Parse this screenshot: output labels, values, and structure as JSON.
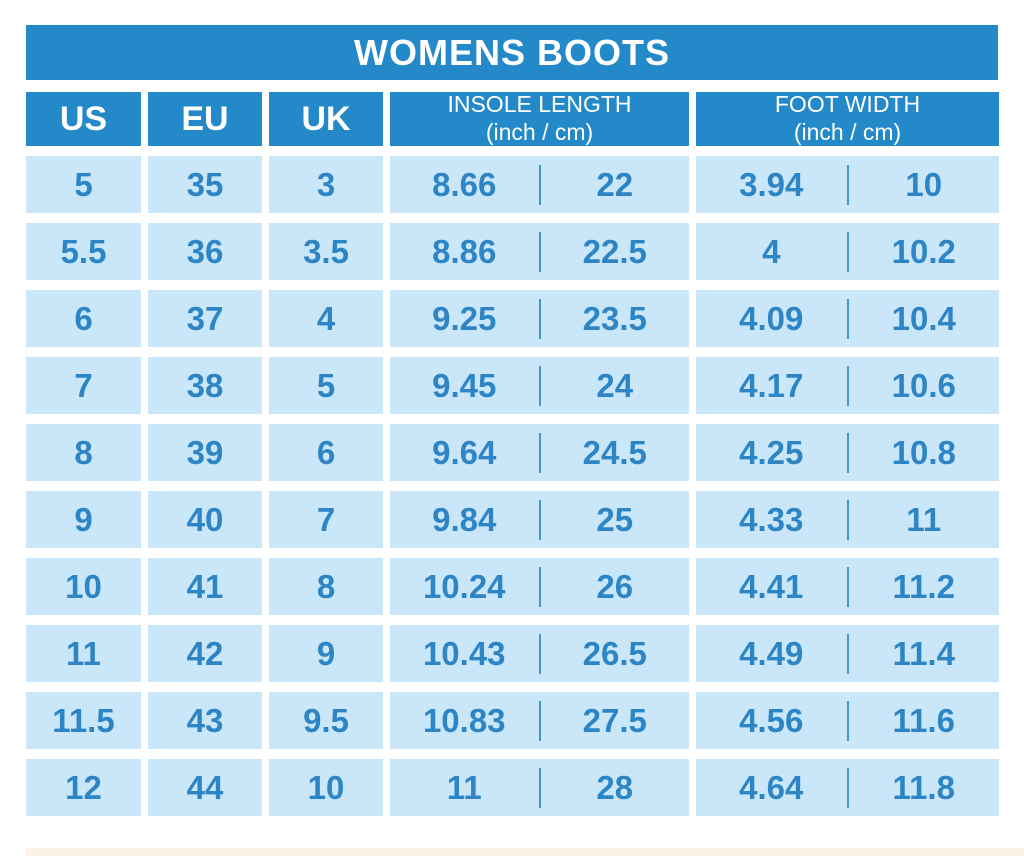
{
  "title": "WOMENS BOOTS",
  "header": {
    "us": "US",
    "eu": "EU",
    "uk": "UK",
    "insole_title": "INSOLE LENGTH",
    "insole_sub": "(inch / cm)",
    "foot_title": "FOOT WIDTH",
    "foot_sub": "(inch / cm)"
  },
  "rows": [
    {
      "us": "5",
      "eu": "35",
      "uk": "3",
      "insole_inch": "8.66",
      "insole_cm": "22",
      "foot_inch": "3.94",
      "foot_cm": "10"
    },
    {
      "us": "5.5",
      "eu": "36",
      "uk": "3.5",
      "insole_inch": "8.86",
      "insole_cm": "22.5",
      "foot_inch": "4",
      "foot_cm": "10.2"
    },
    {
      "us": "6",
      "eu": "37",
      "uk": "4",
      "insole_inch": "9.25",
      "insole_cm": "23.5",
      "foot_inch": "4.09",
      "foot_cm": "10.4"
    },
    {
      "us": "7",
      "eu": "38",
      "uk": "5",
      "insole_inch": "9.45",
      "insole_cm": "24",
      "foot_inch": "4.17",
      "foot_cm": "10.6"
    },
    {
      "us": "8",
      "eu": "39",
      "uk": "6",
      "insole_inch": "9.64",
      "insole_cm": "24.5",
      "foot_inch": "4.25",
      "foot_cm": "10.8"
    },
    {
      "us": "9",
      "eu": "40",
      "uk": "7",
      "insole_inch": "9.84",
      "insole_cm": "25",
      "foot_inch": "4.33",
      "foot_cm": "11"
    },
    {
      "us": "10",
      "eu": "41",
      "uk": "8",
      "insole_inch": "10.24",
      "insole_cm": "26",
      "foot_inch": "4.41",
      "foot_cm": "11.2"
    },
    {
      "us": "11",
      "eu": "42",
      "uk": "9",
      "insole_inch": "10.43",
      "insole_cm": "26.5",
      "foot_inch": "4.49",
      "foot_cm": "11.4"
    },
    {
      "us": "11.5",
      "eu": "43",
      "uk": "9.5",
      "insole_inch": "10.83",
      "insole_cm": "27.5",
      "foot_inch": "4.56",
      "foot_cm": "11.6"
    },
    {
      "us": "12",
      "eu": "44",
      "uk": "10",
      "insole_inch": "11",
      "insole_cm": "28",
      "foot_inch": "4.64",
      "foot_cm": "11.8"
    }
  ],
  "colors": {
    "header_blue": "#2489c8",
    "cell_light_blue": "#c9e7f8",
    "text_blue": "#2d85c5",
    "divider_blue": "#4597c8",
    "bottom_strip": "#fdf2e6"
  },
  "chart_data": {
    "type": "table",
    "title": "WOMENS BOOTS",
    "columns": [
      "US",
      "EU",
      "UK",
      "INSOLE LENGTH (inch / cm)",
      "FOOT WIDTH (inch / cm)"
    ],
    "rows": [
      [
        "5",
        "35",
        "3",
        "8.66",
        "22",
        "3.94",
        "10"
      ],
      [
        "5.5",
        "36",
        "3.5",
        "8.86",
        "22.5",
        "4",
        "10.2"
      ],
      [
        "6",
        "37",
        "4",
        "9.25",
        "23.5",
        "4.09",
        "10.4"
      ],
      [
        "7",
        "38",
        "5",
        "9.45",
        "24",
        "4.17",
        "10.6"
      ],
      [
        "8",
        "39",
        "6",
        "9.64",
        "24.5",
        "4.25",
        "10.8"
      ],
      [
        "9",
        "40",
        "7",
        "9.84",
        "25",
        "4.33",
        "11"
      ],
      [
        "10",
        "41",
        "8",
        "10.24",
        "26",
        "4.41",
        "11.2"
      ],
      [
        "11",
        "42",
        "9",
        "10.43",
        "26.5",
        "4.49",
        "11.4"
      ],
      [
        "11.5",
        "43",
        "9.5",
        "10.83",
        "27.5",
        "4.56",
        "11.6"
      ],
      [
        "12",
        "44",
        "10",
        "11",
        "28",
        "4.64",
        "11.8"
      ]
    ]
  }
}
